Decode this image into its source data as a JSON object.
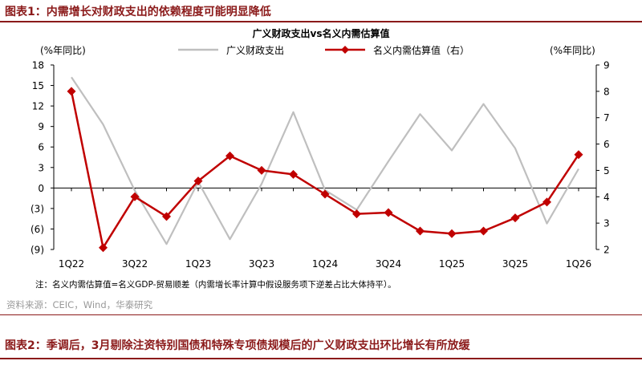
{
  "figure1": {
    "label": "图表1：",
    "title": "内需增长对财政支出的依赖程度可能明显降低"
  },
  "figure2": {
    "label": "图表2：",
    "title": "季调后，3月剔除注资特别国债和特殊专项债规模后的广义财政支出环比增长有所放缓"
  },
  "note": "注：名义内需估算值=名义GDP-贸易顺差（内需增长率计算中假设服务项下逆差占比大体持平）。",
  "source": "资料来源：CEIC，Wind，华泰研究",
  "colors": {
    "accent": "#8B1A1A",
    "series_gray": "#bfbfbf",
    "series_red": "#c00000"
  },
  "chart_data": {
    "type": "line",
    "title": "广义财政支出vs名义内需估算值",
    "y_left_label": "(%年同比)",
    "y_right_label": "(%年同比)",
    "y_left_range": [
      -9,
      18
    ],
    "y_right_range": [
      2,
      9
    ],
    "y_left_ticks": [
      "18",
      "15",
      "12",
      "9",
      "6",
      "3",
      "0",
      "(3)",
      "(6)",
      "(9)"
    ],
    "y_right_ticks": [
      "9",
      "8",
      "7",
      "6",
      "5",
      "4",
      "3",
      "2"
    ],
    "x": [
      "1Q22",
      "2Q22",
      "3Q22",
      "4Q22",
      "1Q23",
      "2Q23",
      "3Q23",
      "4Q23",
      "1Q24",
      "2Q24",
      "3Q24",
      "4Q24",
      "1Q25",
      "2Q25",
      "3Q25",
      "4Q25",
      "1Q26"
    ],
    "x_tick_labels": [
      "1Q22",
      "",
      "3Q22",
      "",
      "1Q23",
      "",
      "3Q23",
      "",
      "1Q24",
      "",
      "3Q24",
      "",
      "1Q25",
      "",
      "3Q25",
      "",
      "1Q26"
    ],
    "series": [
      {
        "name": "广义财政支出",
        "axis": "left",
        "marker": "none",
        "values": [
          16.2,
          9.3,
          -0.4,
          -8.2,
          0.9,
          -7.5,
          0.6,
          11.1,
          -0.3,
          -3.2,
          3.9,
          10.8,
          5.5,
          12.3,
          5.8,
          -5.2,
          2.8
        ]
      },
      {
        "name": "名义内需估算值（右）",
        "axis": "right",
        "marker": "diamond",
        "values": [
          8.0,
          2.07,
          4.0,
          3.25,
          4.6,
          5.55,
          5.0,
          4.85,
          4.1,
          3.35,
          3.4,
          2.7,
          2.6,
          2.7,
          3.2,
          3.8,
          5.6
        ]
      }
    ]
  }
}
